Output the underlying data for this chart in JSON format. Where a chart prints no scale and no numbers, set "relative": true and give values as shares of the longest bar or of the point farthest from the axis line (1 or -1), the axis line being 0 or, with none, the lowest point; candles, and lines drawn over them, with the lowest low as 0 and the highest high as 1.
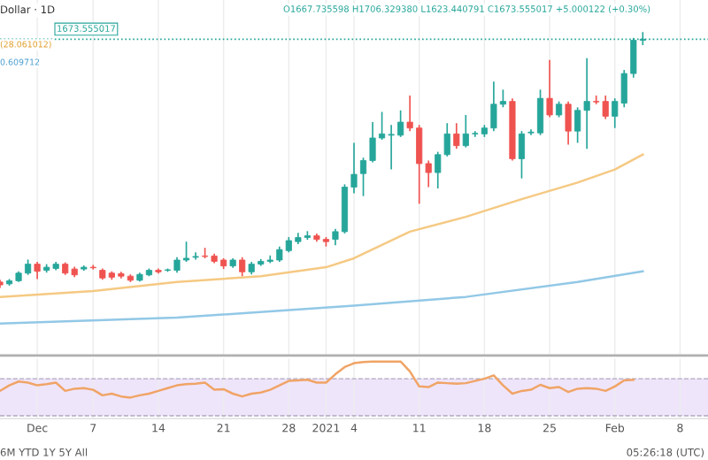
{
  "chart_data": [
    {
      "type": "candlestick",
      "relative": true,
      "x": [
        "2020-11-27",
        "2020-11-28",
        "2020-11-29",
        "2020-11-30",
        "2020-12-01",
        "2020-12-02",
        "2020-12-03",
        "2020-12-04",
        "2020-12-05",
        "2020-12-06",
        "2020-12-07",
        "2020-12-08",
        "2020-12-09",
        "2020-12-10",
        "2020-12-11",
        "2020-12-12",
        "2020-12-13",
        "2020-12-14",
        "2020-12-15",
        "2020-12-16",
        "2020-12-17",
        "2020-12-18",
        "2020-12-19",
        "2020-12-20",
        "2020-12-21",
        "2020-12-22",
        "2020-12-23",
        "2020-12-24",
        "2020-12-25",
        "2020-12-26",
        "2020-12-27",
        "2020-12-28",
        "2020-12-29",
        "2020-12-30",
        "2020-12-31",
        "2021-01-01",
        "2021-01-02",
        "2021-01-03",
        "2021-01-04",
        "2021-01-05",
        "2021-01-06",
        "2021-01-07",
        "2021-01-08",
        "2021-01-09",
        "2021-01-10",
        "2021-01-11",
        "2021-01-12",
        "2021-01-13",
        "2021-01-14",
        "2021-01-15",
        "2021-01-16",
        "2021-01-17",
        "2021-01-18",
        "2021-01-19",
        "2021-01-20",
        "2021-01-21",
        "2021-01-22",
        "2021-01-23",
        "2021-01-24",
        "2021-01-25",
        "2021-01-26",
        "2021-01-27",
        "2021-01-28",
        "2021-01-29",
        "2021-01-30",
        "2021-01-31",
        "2021-02-01",
        "2021-02-02",
        "2021-02-03",
        "2021-02-04"
      ],
      "ohlc": [
        [
          0.023,
          0.032,
          0,
          0.012
        ],
        [
          0.016,
          0.035,
          0.009,
          0.028
        ],
        [
          0.028,
          0.065,
          0.023,
          0.058
        ],
        [
          0.058,
          0.111,
          0.051,
          0.093
        ],
        [
          0.093,
          0.102,
          0.035,
          0.065
        ],
        [
          0.069,
          0.093,
          0.06,
          0.081
        ],
        [
          0.076,
          0.102,
          0.069,
          0.093
        ],
        [
          0.093,
          0.1,
          0.051,
          0.058
        ],
        [
          0.074,
          0.083,
          0.042,
          0.051
        ],
        [
          0.074,
          0.088,
          0.067,
          0.081
        ],
        [
          0.081,
          0.09,
          0.072,
          0.079
        ],
        [
          0.069,
          0.076,
          0.032,
          0.039
        ],
        [
          0.058,
          0.065,
          0.032,
          0.042
        ],
        [
          0.056,
          0.063,
          0.037,
          0.046
        ],
        [
          0.046,
          0.053,
          0.023,
          0.03
        ],
        [
          0.03,
          0.06,
          0.025,
          0.053
        ],
        [
          0.051,
          0.076,
          0.046,
          0.069
        ],
        [
          0.069,
          0.076,
          0.056,
          0.063
        ],
        [
          0.069,
          0.076,
          0.063,
          0.069
        ],
        [
          0.069,
          0.12,
          0.06,
          0.109
        ],
        [
          0.109,
          0.181,
          0.102,
          0.116
        ],
        [
          0.12,
          0.139,
          0.111,
          0.123
        ],
        [
          0.125,
          0.157,
          0.116,
          0.123
        ],
        [
          0.125,
          0.134,
          0.097,
          0.104
        ],
        [
          0.109,
          0.116,
          0.074,
          0.086
        ],
        [
          0.086,
          0.116,
          0.079,
          0.109
        ],
        [
          0.109,
          0.12,
          0.046,
          0.063
        ],
        [
          0.063,
          0.102,
          0.053,
          0.093
        ],
        [
          0.093,
          0.113,
          0.086,
          0.104
        ],
        [
          0.104,
          0.127,
          0.097,
          0.109
        ],
        [
          0.109,
          0.162,
          0.102,
          0.15
        ],
        [
          0.146,
          0.199,
          0.139,
          0.185
        ],
        [
          0.181,
          0.215,
          0.171,
          0.197
        ],
        [
          0.197,
          0.222,
          0.188,
          0.204
        ],
        [
          0.204,
          0.213,
          0.181,
          0.19
        ],
        [
          0.19,
          0.199,
          0.162,
          0.181
        ],
        [
          0.19,
          0.231,
          0.167,
          0.22
        ],
        [
          0.22,
          0.405,
          0.213,
          0.394
        ],
        [
          0.394,
          0.567,
          0.37,
          0.444
        ],
        [
          0.447,
          0.509,
          0.359,
          0.498
        ],
        [
          0.498,
          0.648,
          0.491,
          0.586
        ],
        [
          0.586,
          0.688,
          0.579,
          0.602
        ],
        [
          0.597,
          0.637,
          0.463,
          0.6
        ],
        [
          0.597,
          0.694,
          0.59,
          0.648
        ],
        [
          0.648,
          0.752,
          0.613,
          0.625
        ],
        [
          0.625,
          0.637,
          0.329,
          0.486
        ],
        [
          0.486,
          0.498,
          0.394,
          0.451
        ],
        [
          0.451,
          0.532,
          0.389,
          0.521
        ],
        [
          0.521,
          0.644,
          0.514,
          0.602
        ],
        [
          0.602,
          0.644,
          0.544,
          0.556
        ],
        [
          0.556,
          0.676,
          0.549,
          0.602
        ],
        [
          0.602,
          0.613,
          0.59,
          0.604
        ],
        [
          0.602,
          0.637,
          0.59,
          0.625
        ],
        [
          0.625,
          0.806,
          0.613,
          0.718
        ],
        [
          0.718,
          0.775,
          0.706,
          0.729
        ],
        [
          0.729,
          0.741,
          0.498,
          0.505
        ],
        [
          0.505,
          0.613,
          0.428,
          0.602
        ],
        [
          0.606,
          0.62,
          0.597,
          0.609
        ],
        [
          0.606,
          0.775,
          0.597,
          0.741
        ],
        [
          0.741,
          0.891,
          0.667,
          0.676
        ],
        [
          0.676,
          0.729,
          0.667,
          0.718
        ],
        [
          0.718,
          0.729,
          0.56,
          0.613
        ],
        [
          0.613,
          0.706,
          0.567,
          0.694
        ],
        [
          0.694,
          0.898,
          0.544,
          0.729
        ],
        [
          0.729,
          0.752,
          0.718,
          0.727
        ],
        [
          0.729,
          0.752,
          0.66,
          0.671
        ],
        [
          0.671,
          0.741,
          0.625,
          0.729
        ],
        [
          0.722,
          0.852,
          0.706,
          0.838
        ],
        [
          0.838,
          0.977,
          0.822,
          0.968
        ],
        [
          0.968,
          1,
          0.949,
          0.972
        ]
      ],
      "colors": [
        "#ef5350",
        "#26a69a",
        "#26a69a",
        "#26a69a",
        "#ef5350",
        "#26a69a",
        "#26a69a",
        "#ef5350",
        "#ef5350",
        "#26a69a",
        "#ef5350",
        "#ef5350",
        "#ef5350",
        "#ef5350",
        "#ef5350",
        "#26a69a",
        "#26a69a",
        "#ef5350",
        "#26a69a",
        "#26a69a",
        "#26a69a",
        "#26a69a",
        "#ef5350",
        "#ef5350",
        "#ef5350",
        "#26a69a",
        "#ef5350",
        "#26a69a",
        "#26a69a",
        "#26a69a",
        "#26a69a",
        "#26a69a",
        "#26a69a",
        "#26a69a",
        "#ef5350",
        "#ef5350",
        "#26a69a",
        "#26a69a",
        "#26a69a",
        "#26a69a",
        "#26a69a",
        "#26a69a",
        "#26a69a",
        "#26a69a",
        "#ef5350",
        "#ef5350",
        "#ef5350",
        "#26a69a",
        "#26a69a",
        "#ef5350",
        "#26a69a",
        "#26a69a",
        "#26a69a",
        "#26a69a",
        "#26a69a",
        "#ef5350",
        "#26a69a",
        "#26a69a",
        "#26a69a",
        "#ef5350",
        "#26a69a",
        "#ef5350",
        "#26a69a",
        "#26a69a",
        "#ef5350",
        "#ef5350",
        "#26a69a",
        "#26a69a",
        "#26a69a",
        "#26a69a"
      ],
      "series": [
        {
          "type": "line",
          "color": "#f5c983",
          "x": [
            "2020-11-27",
            "2020-12-07",
            "2020-12-16",
            "2020-12-25",
            "2021-01-01",
            "2021-01-04",
            "2021-01-10",
            "2021-01-16",
            "2021-01-22",
            "2021-01-28",
            "2021-02-01",
            "2021-02-04"
          ],
          "values": [
            -0.035,
            -0.012,
            0.023,
            0.046,
            0.081,
            0.116,
            0.22,
            0.278,
            0.347,
            0.412,
            0.463,
            0.521
          ]
        },
        {
          "type": "line",
          "color": "#92c8e6",
          "x": [
            "2020-11-27",
            "2020-12-16",
            "2021-01-04",
            "2021-01-16",
            "2021-01-28",
            "2021-02-04"
          ],
          "values": [
            -0.139,
            -0.116,
            -0.069,
            -0.035,
            0.023,
            0.065
          ]
        }
      ],
      "ref_lines": [
        {
          "axis": "y",
          "value": 0.972,
          "line_style": "dotted",
          "color": "#26a69a"
        }
      ],
      "xlim": [
        "2020-11-27",
        "2021-02-11"
      ],
      "xticks": [
        {
          "value": "2020-12-01",
          "label": null
        },
        {
          "value": "2020-12-07",
          "label": null
        },
        {
          "value": "2020-12-14",
          "label": null
        },
        {
          "value": "2020-12-21",
          "label": null
        },
        {
          "value": "2020-12-28",
          "label": null
        },
        {
          "value": "2021-01-01",
          "label": null
        },
        {
          "value": "2021-01-04",
          "label": null
        },
        {
          "value": "2021-01-11",
          "label": null
        },
        {
          "value": "2021-01-18",
          "label": null
        },
        {
          "value": "2021-01-25",
          "label": null
        },
        {
          "value": "2021-02-01",
          "label": null
        },
        {
          "value": "2021-02-08",
          "label": null
        }
      ],
      "tick_labels": false,
      "grid": "x",
      "annotations": [
        "Dollar · 1D",
        "O1667.735598 H1706.329380 L1623.440791 C1673.555017 +5.000122 (+0.30%)",
        "1673.555017",
        "(28.061012)",
        "0.609712"
      ]
    },
    {
      "type": "line",
      "relative": true,
      "series": [
        {
          "color": "#f0a466",
          "x": [
            "2020-11-27",
            "2020-11-28",
            "2020-11-29",
            "2020-11-30",
            "2020-12-01",
            "2020-12-02",
            "2020-12-03",
            "2020-12-04",
            "2020-12-05",
            "2020-12-06",
            "2020-12-07",
            "2020-12-08",
            "2020-12-09",
            "2020-12-10",
            "2020-12-11",
            "2020-12-12",
            "2020-12-13",
            "2020-12-14",
            "2020-12-15",
            "2020-12-16",
            "2020-12-17",
            "2020-12-18",
            "2020-12-19",
            "2020-12-20",
            "2020-12-21",
            "2020-12-22",
            "2020-12-23",
            "2020-12-24",
            "2020-12-25",
            "2020-12-26",
            "2020-12-27",
            "2020-12-28",
            "2020-12-29",
            "2020-12-30",
            "2020-12-31",
            "2021-01-01",
            "2021-01-02",
            "2021-01-03",
            "2021-01-04",
            "2021-01-05",
            "2021-01-06",
            "2021-01-07",
            "2021-01-08",
            "2021-01-09",
            "2021-01-10",
            "2021-01-11",
            "2021-01-12",
            "2021-01-13",
            "2021-01-14",
            "2021-01-15",
            "2021-01-16",
            "2021-01-17",
            "2021-01-18",
            "2021-01-19",
            "2021-01-20",
            "2021-01-21",
            "2021-01-22",
            "2021-01-23",
            "2021-01-24",
            "2021-01-25",
            "2021-01-26",
            "2021-01-27",
            "2021-01-28",
            "2021-01-29",
            "2021-01-30",
            "2021-01-31",
            "2021-02-01",
            "2021-02-02",
            "2021-02-03"
          ],
          "values": [
            0.485,
            0.583,
            0.65,
            0.631,
            0.583,
            0.602,
            0.631,
            0.485,
            0.524,
            0.534,
            0.505,
            0.408,
            0.437,
            0.388,
            0.369,
            0.408,
            0.437,
            0.485,
            0.534,
            0.583,
            0.602,
            0.612,
            0.631,
            0.505,
            0.515,
            0.437,
            0.388,
            0.437,
            0.456,
            0.505,
            0.583,
            0.66,
            0.67,
            0.68,
            0.631,
            0.631,
            0.777,
            0.903,
            0.971,
            0.99,
            1,
            1,
            1,
            1,
            0.825,
            0.563,
            0.553,
            0.631,
            0.621,
            0.612,
            0.621,
            0.66,
            0.699,
            0.757,
            0.583,
            0.437,
            0.485,
            0.505,
            0.592,
            0.534,
            0.553,
            0.466,
            0.524,
            0.534,
            0.524,
            0.485,
            0.563,
            0.67,
            0.68
          ]
        }
      ],
      "bands": [
        {
          "axis": "y",
          "from": 0.049,
          "to": 0.699,
          "color": "#efe5fb"
        }
      ],
      "ref_lines": [
        {
          "axis": "y",
          "value": 0.049,
          "line_style": "dashed",
          "color": "#b0a8c0"
        },
        {
          "axis": "y",
          "value": 0.699,
          "line_style": "dashed",
          "color": "#b0a8c0"
        }
      ],
      "xlim": [
        "2020-11-27",
        "2021-02-11"
      ],
      "xticks": [
        {
          "value": "2020-12-01",
          "label": "Dec"
        },
        {
          "value": "2020-12-07",
          "label": "7"
        },
        {
          "value": "2020-12-14",
          "label": "14"
        },
        {
          "value": "2020-12-21",
          "label": "21"
        },
        {
          "value": "2020-12-28",
          "label": "28"
        },
        {
          "value": "2021-01-01",
          "label": "2021"
        },
        {
          "value": "2021-01-04",
          "label": "4"
        },
        {
          "value": "2021-01-11",
          "label": "11"
        },
        {
          "value": "2021-01-18",
          "label": "18"
        },
        {
          "value": "2021-01-25",
          "label": "25"
        },
        {
          "value": "2021-02-01",
          "label": "Feb"
        },
        {
          "value": "2021-02-08",
          "label": "8"
        }
      ],
      "tick_labels": "x",
      "grid": "x",
      "annotations": [
        "6M YTD 1Y 5Y All",
        "05:26:18 (UTC)"
      ]
    }
  ]
}
